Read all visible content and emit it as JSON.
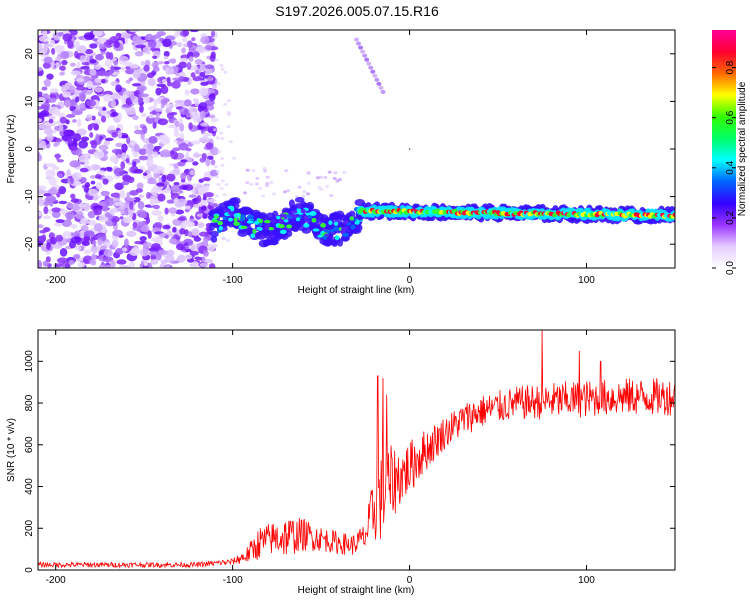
{
  "chart_data": [
    {
      "type": "heatmap",
      "title": "S197.2026.005.07.15.R16",
      "xlabel": "Height of straight line (km)",
      "ylabel": "Frequency (Hz)",
      "xlim": [
        -210,
        150
      ],
      "ylim": [
        -25,
        25
      ],
      "xticks": [
        -200,
        -100,
        0,
        100
      ],
      "xtick_labels": [
        "-200",
        "-100",
        "0",
        "100"
      ],
      "yticks": [
        -20,
        -10,
        0,
        10,
        20
      ],
      "ytick_labels": [
        "-20",
        "-10",
        "0",
        "10",
        "20"
      ],
      "colorbar": {
        "label": "Normalized spectral amplitude",
        "range": [
          0,
          0.95
        ],
        "ticks": [
          0,
          0.2,
          0.4,
          0.6,
          0.8
        ],
        "tick_labels": [
          "0.0",
          "0.2",
          "0.4",
          "0.6",
          "0.8"
        ],
        "colors": [
          "#ffffff",
          "#e6ccff",
          "#9933ff",
          "#3300ff",
          "#0066ff",
          "#00ffff",
          "#00ff66",
          "#33ff00",
          "#ffff00",
          "#ff6600",
          "#ff0033",
          "#ff0099"
        ]
      },
      "features": {
        "noise_region_x": [
          -210,
          -110
        ],
        "descending_streak": {
          "x": [
            -30,
            -15
          ],
          "y": [
            23,
            12
          ]
        },
        "scattered_band": {
          "x": [
            -112,
            -28
          ],
          "y_range": [
            -22,
            -10
          ]
        },
        "steady_band": {
          "x": [
            -28,
            150
          ],
          "y": [
            -13,
            -14
          ]
        }
      }
    },
    {
      "type": "line",
      "title": "",
      "xlabel": "Height of straight line (km)",
      "ylabel": "SNR (10 * v/v)",
      "xlim": [
        -210,
        150
      ],
      "ylim": [
        0,
        1150
      ],
      "xticks": [
        -200,
        -100,
        0,
        100
      ],
      "xtick_labels": [
        "-200",
        "-100",
        "0",
        "100"
      ],
      "yticks": [
        0,
        200,
        400,
        600,
        800,
        1000
      ],
      "ytick_labels": [
        "0",
        "200",
        "400",
        "600",
        "800",
        "1000"
      ],
      "series": [
        {
          "name": "SNR",
          "color": "#ff0000",
          "envelope_x": [
            -210,
            -120,
            -100,
            -92,
            -85,
            -78,
            -70,
            -60,
            -50,
            -40,
            -32,
            -25,
            -20,
            -15,
            -10,
            -5,
            0,
            5,
            10,
            20,
            30,
            40,
            60,
            80,
            100,
            120,
            150
          ],
          "envelope_y": [
            25,
            25,
            40,
            70,
            130,
            150,
            160,
            170,
            150,
            130,
            120,
            160,
            300,
            350,
            420,
            450,
            490,
            540,
            580,
            660,
            720,
            760,
            800,
            810,
            820,
            830,
            830
          ],
          "envelope_noise": [
            12,
            12,
            15,
            40,
            80,
            80,
            100,
            80,
            60,
            55,
            50,
            70,
            170,
            220,
            180,
            140,
            130,
            120,
            100,
            80,
            80,
            80,
            80,
            90,
            90,
            90,
            90
          ],
          "spikes": [
            {
              "x": -18,
              "y": 930
            },
            {
              "x": -15,
              "y": 920
            },
            {
              "x": -13,
              "y": 840
            },
            {
              "x": 75,
              "y": 1150
            },
            {
              "x": 96,
              "y": 1050
            },
            {
              "x": 108,
              "y": 1000
            }
          ]
        }
      ]
    }
  ]
}
